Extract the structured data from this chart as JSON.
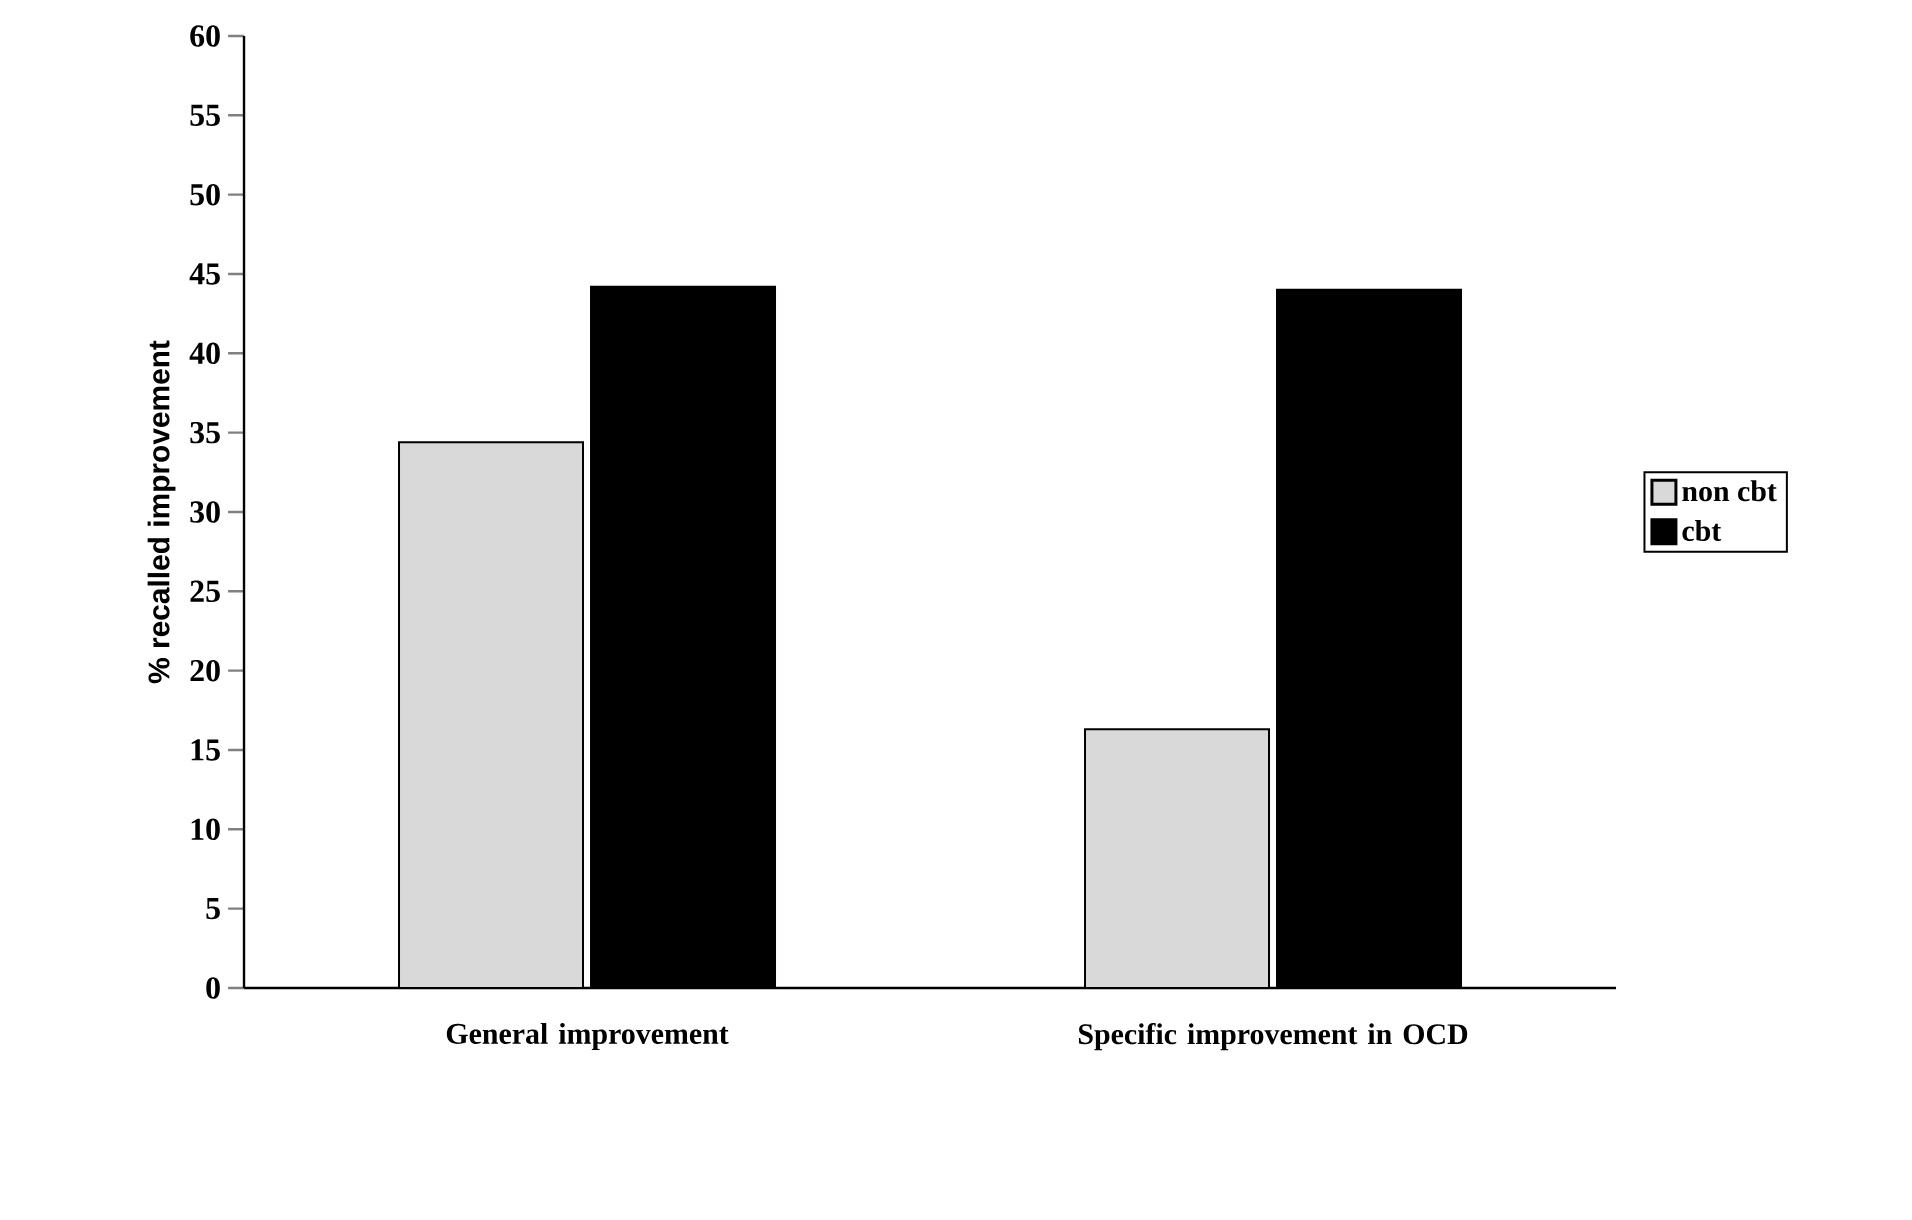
{
  "chart_data": {
    "type": "bar",
    "ylabel": "% recalled improvement",
    "categories": [
      "General improvement",
      "Specific improvement in OCD"
    ],
    "series": [
      {
        "name": "non cbt",
        "color": "#d9d9d9",
        "values": [
          34.4,
          16.3
        ]
      },
      {
        "name": "cbt",
        "color": "#000000",
        "values": [
          44.2,
          44.0
        ]
      }
    ],
    "ylim": [
      0,
      60
    ],
    "yticks": [
      0,
      5,
      10,
      15,
      20,
      25,
      30,
      35,
      40,
      45,
      50,
      55,
      60
    ],
    "legend": "right",
    "grid": false
  }
}
